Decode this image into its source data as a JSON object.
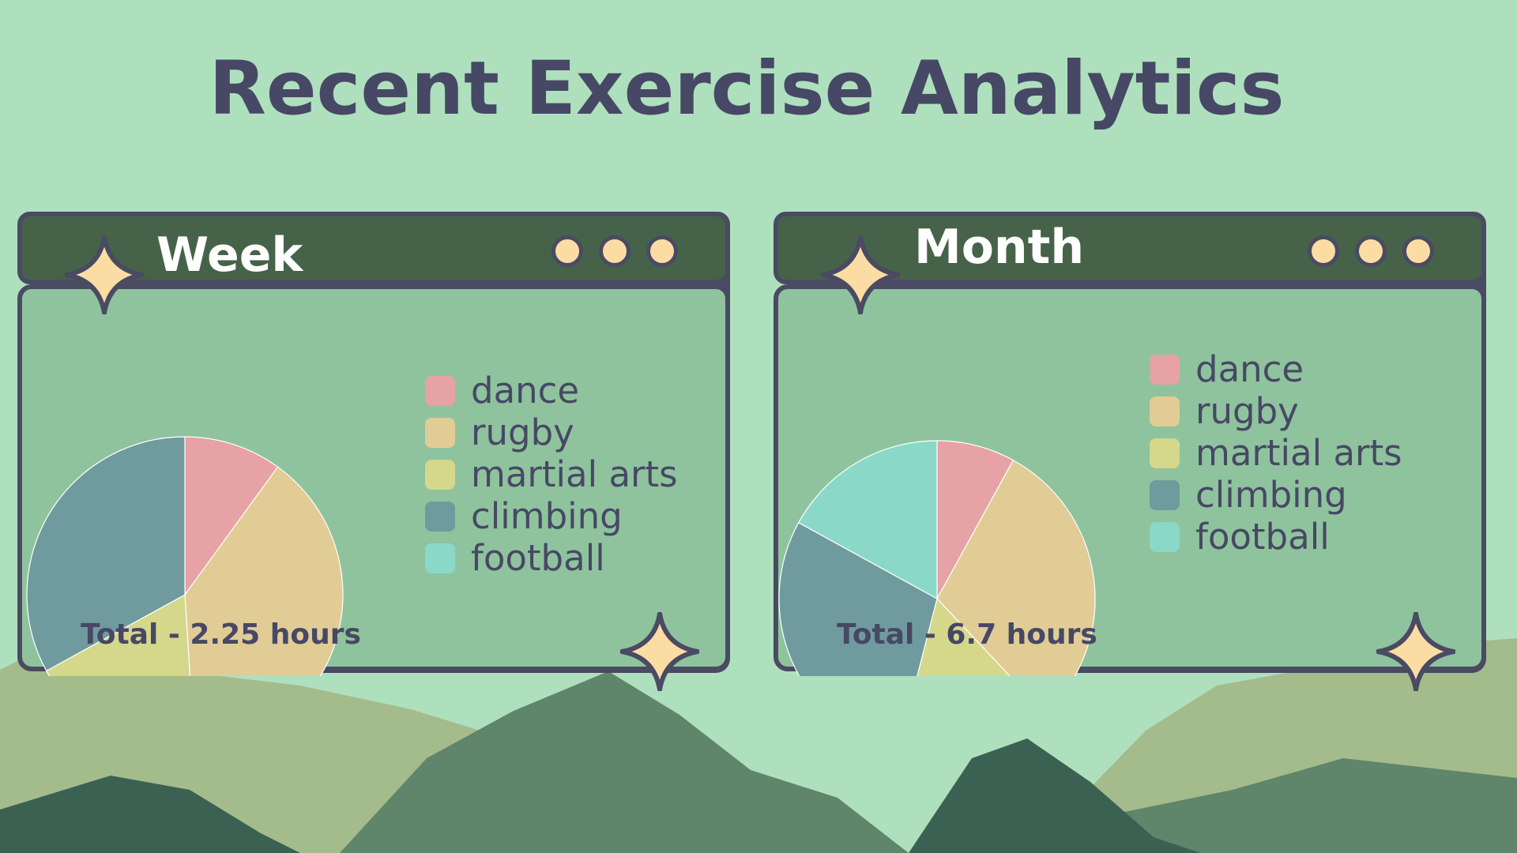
{
  "title": "Recent Exercise Analytics",
  "colors": {
    "dance": "#e6a2a5",
    "rugby": "#e1cc96",
    "martial arts": "#d5d78b",
    "climbing": "#6f9b9e",
    "football": "#8ad8c7"
  },
  "panels": [
    {
      "title": "Week",
      "total": "Total - 2.25 hours"
    },
    {
      "title": "Month",
      "total": "Total - 6.7 hours"
    }
  ],
  "chart_data": [
    {
      "type": "pie",
      "title": "Week",
      "categories": [
        "dance",
        "rugby",
        "martial arts",
        "climbing",
        "football"
      ],
      "values": [
        10,
        39,
        18,
        33,
        0
      ],
      "unit": "%",
      "legend": "right"
    },
    {
      "type": "pie",
      "title": "Month",
      "categories": [
        "dance",
        "rugby",
        "martial arts",
        "climbing",
        "football"
      ],
      "values": [
        8,
        30,
        16,
        29,
        17
      ],
      "unit": "%",
      "legend": "right"
    }
  ]
}
